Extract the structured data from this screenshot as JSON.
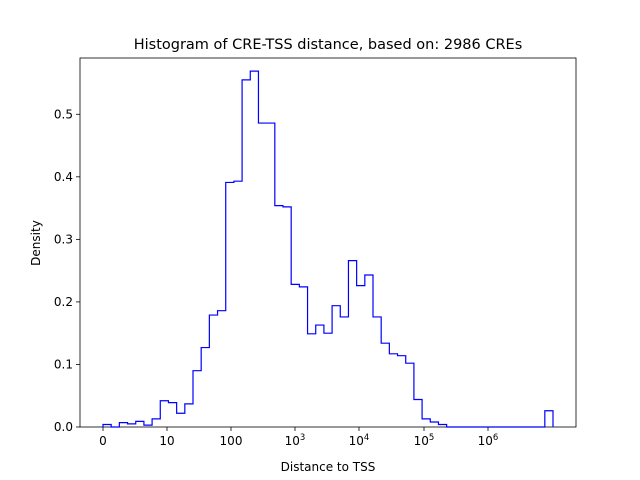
{
  "chart_data": {
    "type": "histogram-step",
    "title": "Histogram of CRE-TSS distance, based on: 2986 CREs",
    "xlabel": "Distance to TSS",
    "ylabel": "Density",
    "ylim": [
      0,
      0.59
    ],
    "line_color": "#0000ff",
    "x_ticks": [
      {
        "label": "0"
      },
      {
        "label": "10"
      },
      {
        "label": "100"
      },
      {
        "base": "10",
        "exp": "3"
      },
      {
        "base": "10",
        "exp": "4"
      },
      {
        "base": "10",
        "exp": "5"
      },
      {
        "base": "10",
        "exp": "6"
      }
    ],
    "y_ticks": [
      "0.0",
      "0.1",
      "0.2",
      "0.3",
      "0.4",
      "0.5"
    ],
    "y_tick_values": [
      0.0,
      0.1,
      0.2,
      0.3,
      0.4,
      0.5
    ],
    "bin_densities": [
      0.004,
      0.0,
      0.007,
      0.005,
      0.009,
      0.003,
      0.013,
      0.042,
      0.039,
      0.022,
      0.037,
      0.09,
      0.127,
      0.179,
      0.186,
      0.391,
      0.393,
      0.555,
      0.569,
      0.486,
      0.486,
      0.354,
      0.352,
      0.228,
      0.224,
      0.149,
      0.163,
      0.15,
      0.194,
      0.176,
      0.266,
      0.226,
      0.243,
      0.176,
      0.134,
      0.117,
      0.114,
      0.102,
      0.044,
      0.013,
      0.008,
      0.004,
      0.0,
      0.0,
      0.0,
      0.0,
      0.0,
      0.0,
      0.0,
      0.0,
      0.0,
      0.0,
      0.0,
      0.0,
      0.026
    ]
  }
}
